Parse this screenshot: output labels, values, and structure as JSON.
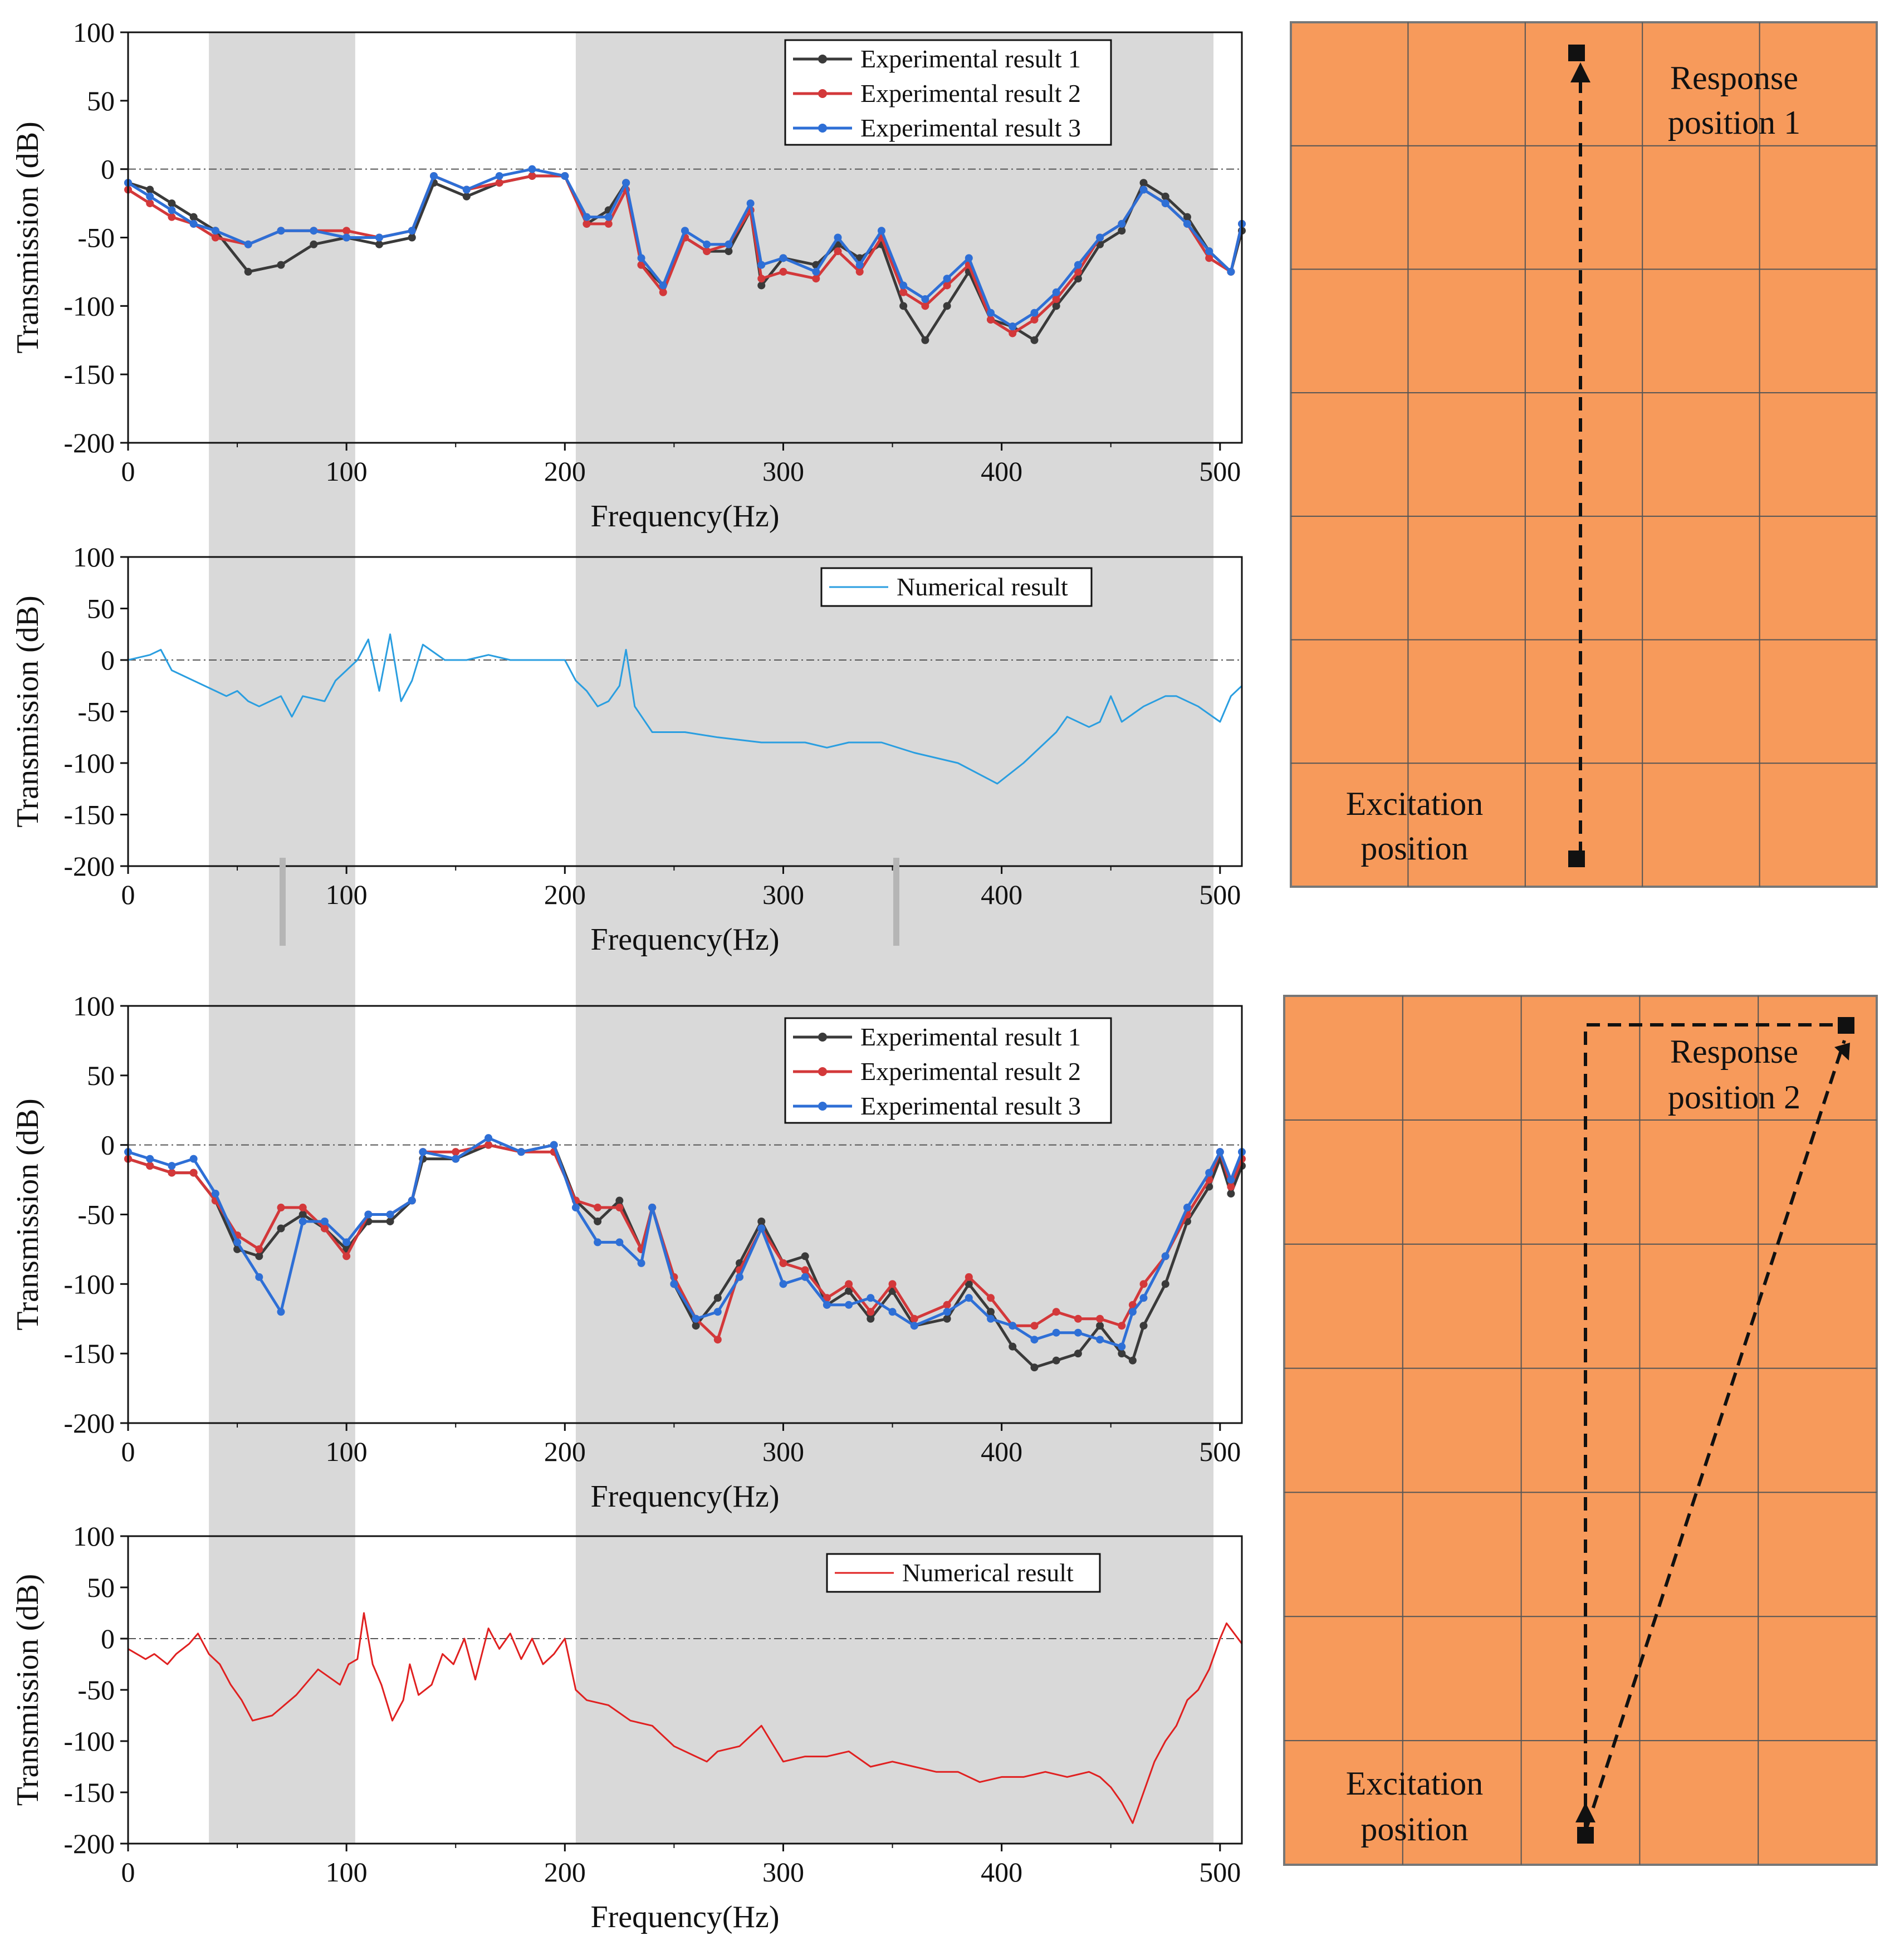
{
  "colors": {
    "shade": "#d9d9d9",
    "exp1": "#3a3a3a",
    "exp2": "#d3383a",
    "exp3": "#2e6fd6",
    "num1": "#2a9ee0",
    "num2": "#e02020",
    "plate": "#f79a5b",
    "plate_line": "#555555"
  },
  "chart_data": [
    {
      "type": "line",
      "id": "p1",
      "xlabel": "Frequency(Hz)",
      "ylabel": "Transmission (dB)",
      "xlim": [
        0,
        510
      ],
      "ylim": [
        -200,
        100
      ],
      "xticks": [
        "0",
        "100",
        "200",
        "300",
        "400",
        "500"
      ],
      "yticks": [
        "-200",
        "-150",
        "-100",
        "-50",
        "0",
        "50",
        "100"
      ],
      "shaded_bands": [
        [
          37,
          104
        ],
        [
          205,
          497
        ]
      ],
      "x": [
        0,
        10,
        20,
        30,
        40,
        55,
        70,
        85,
        100,
        115,
        130,
        140,
        155,
        170,
        185,
        200,
        210,
        220,
        228,
        235,
        245,
        255,
        265,
        275,
        285,
        290,
        300,
        315,
        325,
        335,
        345,
        355,
        365,
        375,
        385,
        395,
        405,
        415,
        425,
        435,
        445,
        455,
        465,
        475,
        485,
        495,
        505,
        510
      ],
      "series": [
        {
          "name": "Experimental result 1",
          "color_key": "exp1",
          "values": [
            -10,
            -15,
            -25,
            -35,
            -45,
            -75,
            -70,
            -55,
            -50,
            -55,
            -50,
            -10,
            -20,
            -10,
            -5,
            -5,
            -40,
            -30,
            -10,
            -70,
            -85,
            -50,
            -60,
            -60,
            -30,
            -85,
            -65,
            -70,
            -55,
            -65,
            -55,
            -100,
            -125,
            -100,
            -75,
            -110,
            -115,
            -125,
            -100,
            -80,
            -55,
            -45,
            -10,
            -20,
            -35,
            -60,
            -75,
            -45
          ]
        },
        {
          "name": "Experimental result 2",
          "color_key": "exp2",
          "values": [
            -15,
            -25,
            -35,
            -40,
            -50,
            -55,
            -45,
            -45,
            -45,
            -50,
            -45,
            -5,
            -15,
            -10,
            -5,
            -5,
            -40,
            -40,
            -15,
            -70,
            -90,
            -50,
            -60,
            -55,
            -30,
            -80,
            -75,
            -80,
            -60,
            -75,
            -50,
            -90,
            -100,
            -85,
            -70,
            -110,
            -120,
            -110,
            -95,
            -75,
            -50,
            -40,
            -15,
            -25,
            -40,
            -65,
            -75,
            -40
          ]
        },
        {
          "name": "Experimental result 3",
          "color_key": "exp3",
          "values": [
            -10,
            -20,
            -30,
            -40,
            -45,
            -55,
            -45,
            -45,
            -50,
            -50,
            -45,
            -5,
            -15,
            -5,
            0,
            -5,
            -35,
            -35,
            -10,
            -65,
            -85,
            -45,
            -55,
            -55,
            -25,
            -70,
            -65,
            -75,
            -50,
            -70,
            -45,
            -85,
            -95,
            -80,
            -65,
            -105,
            -115,
            -105,
            -90,
            -70,
            -50,
            -40,
            -15,
            -25,
            -40,
            -60,
            -75,
            -40
          ]
        }
      ],
      "legend": "top-right"
    },
    {
      "type": "line",
      "id": "p2",
      "xlabel": "Frequency(Hz)",
      "ylabel": "Transmission (dB)",
      "xlim": [
        0,
        510
      ],
      "ylim": [
        -200,
        100
      ],
      "xticks": [
        "0",
        "100",
        "200",
        "300",
        "400",
        "500"
      ],
      "yticks": [
        "-200",
        "-150",
        "-100",
        "-50",
        "0",
        "50",
        "100"
      ],
      "shaded_bands": [
        [
          37,
          104
        ],
        [
          205,
          497
        ]
      ],
      "x": [
        0,
        10,
        15,
        20,
        30,
        40,
        45,
        50,
        55,
        60,
        70,
        75,
        80,
        90,
        95,
        100,
        105,
        110,
        115,
        120,
        125,
        130,
        135,
        145,
        155,
        165,
        175,
        185,
        195,
        200,
        205,
        210,
        215,
        220,
        225,
        228,
        232,
        240,
        255,
        270,
        290,
        310,
        320,
        330,
        345,
        360,
        380,
        398,
        410,
        420,
        425,
        430,
        440,
        445,
        450,
        455,
        465,
        475,
        480,
        490,
        500,
        505,
        510
      ],
      "series": [
        {
          "name": "Numerical result",
          "color_key": "num1",
          "values": [
            0,
            5,
            10,
            -10,
            -20,
            -30,
            -35,
            -30,
            -40,
            -45,
            -35,
            -55,
            -35,
            -40,
            -20,
            -10,
            0,
            20,
            -30,
            25,
            -40,
            -20,
            15,
            0,
            0,
            5,
            0,
            0,
            0,
            0,
            -20,
            -30,
            -45,
            -40,
            -25,
            10,
            -45,
            -70,
            -70,
            -75,
            -80,
            -80,
            -85,
            -80,
            -80,
            -90,
            -100,
            -120,
            -100,
            -80,
            -70,
            -55,
            -65,
            -60,
            -35,
            -60,
            -45,
            -35,
            -35,
            -45,
            -60,
            -35,
            -25
          ]
        }
      ],
      "legend": "top-right"
    },
    {
      "type": "line",
      "id": "p3",
      "xlabel": "Frequency(Hz)",
      "ylabel": "Transmission (dB)",
      "xlim": [
        0,
        510
      ],
      "ylim": [
        -200,
        100
      ],
      "xticks": [
        "0",
        "100",
        "200",
        "300",
        "400",
        "500"
      ],
      "yticks": [
        "-200",
        "-150",
        "-100",
        "-50",
        "0",
        "50",
        "100"
      ],
      "shaded_bands": [
        [
          37,
          104
        ],
        [
          205,
          497
        ]
      ],
      "x": [
        0,
        10,
        20,
        30,
        40,
        50,
        60,
        70,
        80,
        90,
        100,
        110,
        120,
        130,
        135,
        150,
        165,
        180,
        195,
        205,
        215,
        225,
        235,
        240,
        250,
        260,
        270,
        280,
        290,
        300,
        310,
        320,
        330,
        340,
        350,
        360,
        375,
        385,
        395,
        405,
        415,
        425,
        435,
        445,
        455,
        460,
        465,
        475,
        485,
        495,
        500,
        505,
        510
      ],
      "series": [
        {
          "name": "Experimental result 1",
          "color_key": "exp1",
          "values": [
            -10,
            -15,
            -20,
            -20,
            -40,
            -75,
            -80,
            -60,
            -50,
            -60,
            -75,
            -55,
            -55,
            -40,
            -10,
            -10,
            0,
            -5,
            0,
            -40,
            -55,
            -40,
            -75,
            -45,
            -100,
            -130,
            -110,
            -85,
            -55,
            -85,
            -80,
            -115,
            -105,
            -125,
            -105,
            -130,
            -125,
            -100,
            -120,
            -145,
            -160,
            -155,
            -150,
            -130,
            -150,
            -155,
            -130,
            -100,
            -55,
            -30,
            -10,
            -35,
            -15
          ]
        },
        {
          "name": "Experimental result 2",
          "color_key": "exp2",
          "values": [
            -10,
            -15,
            -20,
            -20,
            -40,
            -65,
            -75,
            -45,
            -45,
            -60,
            -80,
            -50,
            -50,
            -40,
            -5,
            -5,
            0,
            -5,
            -5,
            -40,
            -45,
            -45,
            -75,
            -45,
            -95,
            -125,
            -140,
            -90,
            -60,
            -85,
            -90,
            -110,
            -100,
            -120,
            -100,
            -125,
            -115,
            -95,
            -110,
            -130,
            -130,
            -120,
            -125,
            -125,
            -130,
            -115,
            -100,
            -80,
            -50,
            -25,
            -5,
            -30,
            -10
          ]
        },
        {
          "name": "Experimental result 3",
          "color_key": "exp3",
          "values": [
            -5,
            -10,
            -15,
            -10,
            -35,
            -70,
            -95,
            -120,
            -55,
            -55,
            -70,
            -50,
            -50,
            -40,
            -5,
            -10,
            5,
            -5,
            0,
            -45,
            -70,
            -70,
            -85,
            -45,
            -100,
            -125,
            -120,
            -95,
            -60,
            -100,
            -95,
            -115,
            -115,
            -110,
            -120,
            -130,
            -120,
            -110,
            -125,
            -130,
            -140,
            -135,
            -135,
            -140,
            -145,
            -120,
            -110,
            -80,
            -45,
            -20,
            -5,
            -25,
            -5
          ]
        }
      ],
      "legend": "top-right"
    },
    {
      "type": "line",
      "id": "p4",
      "xlabel": "Frequency(Hz)",
      "ylabel": "Transmission (dB)",
      "xlim": [
        0,
        510
      ],
      "ylim": [
        -200,
        100
      ],
      "xticks": [
        "0",
        "100",
        "200",
        "300",
        "400",
        "500"
      ],
      "yticks": [
        "-200",
        "-150",
        "-100",
        "-50",
        "0",
        "50",
        "100"
      ],
      "shaded_bands": [
        [
          37,
          104
        ],
        [
          205,
          497
        ]
      ],
      "x": [
        0,
        8,
        12,
        18,
        22,
        28,
        32,
        37,
        42,
        47,
        52,
        57,
        66,
        77,
        87,
        97,
        101,
        105,
        108,
        112,
        116,
        121,
        126,
        129,
        133,
        139,
        144,
        149,
        154,
        159,
        165,
        170,
        175,
        180,
        185,
        190,
        195,
        200,
        205,
        210,
        220,
        230,
        240,
        250,
        260,
        265,
        270,
        280,
        290,
        300,
        310,
        320,
        330,
        340,
        350,
        360,
        370,
        380,
        390,
        400,
        410,
        420,
        430,
        440,
        445,
        450,
        455,
        460,
        465,
        470,
        475,
        480,
        485,
        490,
        495,
        500,
        503,
        510
      ],
      "series": [
        {
          "name": "Numerical result",
          "color_key": "num2",
          "values": [
            -10,
            -20,
            -15,
            -25,
            -15,
            -5,
            5,
            -15,
            -25,
            -45,
            -60,
            -80,
            -75,
            -55,
            -30,
            -45,
            -25,
            -20,
            25,
            -25,
            -45,
            -80,
            -60,
            -25,
            -55,
            -45,
            -15,
            -25,
            0,
            -40,
            10,
            -10,
            5,
            -20,
            0,
            -25,
            -15,
            0,
            -50,
            -60,
            -65,
            -80,
            -85,
            -105,
            -115,
            -120,
            -110,
            -105,
            -85,
            -120,
            -115,
            -115,
            -110,
            -125,
            -120,
            -125,
            -130,
            -130,
            -140,
            -135,
            -135,
            -130,
            -135,
            -130,
            -135,
            -145,
            -160,
            -180,
            -150,
            -120,
            -100,
            -85,
            -60,
            -50,
            -30,
            0,
            15,
            -5
          ]
        }
      ],
      "legend": "top-right"
    }
  ],
  "diagrams": [
    {
      "label_top": "Response",
      "label_top2": "position  1",
      "label_bottom": "Excitation",
      "label_bottom2": "position"
    },
    {
      "label_top": "Response",
      "label_top2": "position  2",
      "label_bottom": "Excitation",
      "label_bottom2": "position"
    }
  ]
}
